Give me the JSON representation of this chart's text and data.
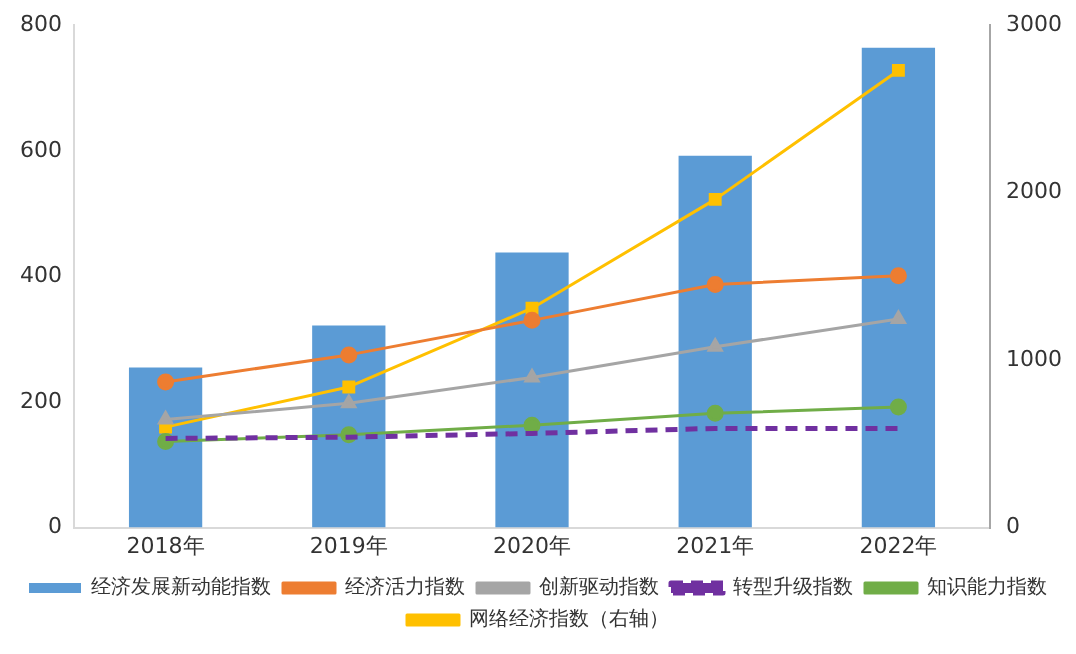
{
  "chart_data": {
    "type": "bar",
    "categories": [
      "2018年",
      "2019年",
      "2020年",
      "2021年",
      "2022年"
    ],
    "series": [
      {
        "name": "经济发展新动能指数",
        "color": "#5b9bd5",
        "values": [
          255,
          322,
          438,
          592,
          764
        ]
      },
      {
        "name": "经济活力指数",
        "type": "line",
        "color": "#ed7d31",
        "marker": "circle",
        "line_style": "solid",
        "values": [
          232,
          275,
          330,
          387,
          401
        ]
      },
      {
        "name": "创新驱动指数",
        "type": "line",
        "color": "#a5a5a5",
        "marker": "triangle",
        "line_style": "solid",
        "values": [
          172,
          198,
          239,
          288,
          332
        ]
      },
      {
        "name": "转型升级指数",
        "type": "line",
        "color": "#7030a0",
        "marker": "none",
        "line_style": "dashed",
        "values": [
          142,
          144,
          150,
          158,
          158
        ]
      },
      {
        "name": "知识能力指数",
        "type": "line",
        "color": "#70ad47",
        "marker": "circle",
        "line_style": "solid",
        "values": [
          137,
          148,
          163,
          182,
          192
        ]
      },
      {
        "name": "网络经济指数（右轴）",
        "type": "line",
        "axis": "y2",
        "color": "#ffc000",
        "marker": "square",
        "line_style": "solid",
        "values": [
          600,
          840,
          1310,
          1960,
          2730
        ]
      }
    ],
    "ylim": [
      0,
      800
    ],
    "yticks": [
      0,
      200,
      400,
      600,
      800
    ],
    "y2lim": [
      0,
      3000
    ],
    "y2ticks": [
      0,
      1000,
      2000,
      3000
    ],
    "grid": false,
    "legend": "bottom"
  }
}
